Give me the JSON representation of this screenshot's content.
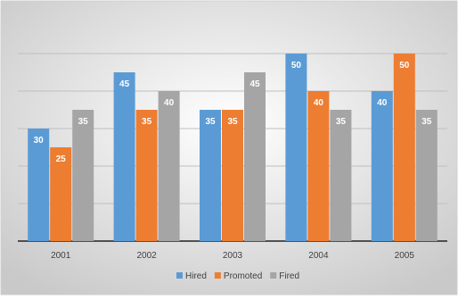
{
  "chart_data": {
    "type": "bar",
    "categories": [
      "2001",
      "2002",
      "2003",
      "2004",
      "2005"
    ],
    "series": [
      {
        "name": "Hired",
        "values": [
          30,
          45,
          35,
          50,
          40
        ],
        "color": "#5B9BD5"
      },
      {
        "name": "Promoted",
        "values": [
          25,
          35,
          35,
          40,
          50
        ],
        "color": "#ED7D31"
      },
      {
        "name": "Fired",
        "values": [
          35,
          40,
          45,
          35,
          35
        ],
        "color": "#A5A5A5"
      }
    ],
    "ylim": [
      0,
      50
    ],
    "grid": true,
    "legend": "bottom",
    "data_labels": true,
    "background_gradient": [
      "#FFFFFF",
      "#C9C9C9"
    ]
  }
}
